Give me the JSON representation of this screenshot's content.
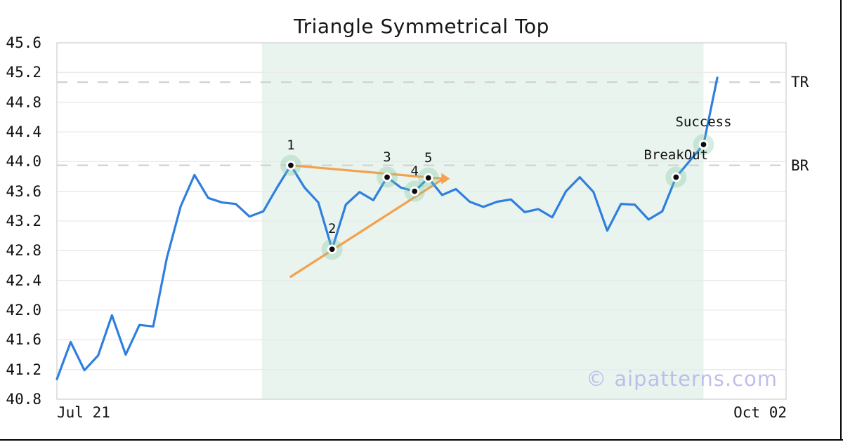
{
  "chart_data": {
    "type": "line",
    "title": "Triangle Symmetrical Top",
    "watermark": "© aipatterns.com",
    "x_tick_labels": [
      "Jul 21",
      "Oct 02"
    ],
    "ylim": [
      40.8,
      45.6
    ],
    "y_tick_step": 0.4,
    "grid": true,
    "series": [
      41.07,
      41.57,
      41.19,
      41.39,
      41.93,
      41.4,
      41.8,
      41.78,
      42.71,
      43.4,
      43.82,
      43.51,
      43.45,
      43.43,
      43.26,
      43.33,
      43.65,
      43.95,
      43.65,
      43.45,
      42.82,
      43.42,
      43.59,
      43.48,
      43.79,
      43.65,
      43.6,
      43.78,
      43.55,
      43.63,
      43.46,
      43.39,
      43.46,
      43.49,
      43.32,
      43.36,
      43.25,
      43.6,
      43.79,
      43.59,
      43.07,
      43.43,
      43.42,
      43.22,
      43.33,
      43.79,
      44.01,
      44.23,
      45.13
    ],
    "pattern_points": [
      {
        "label": "1",
        "index": 17,
        "value": 43.95,
        "kind": "number"
      },
      {
        "label": "2",
        "index": 20,
        "value": 42.82,
        "kind": "number"
      },
      {
        "label": "3",
        "index": 24,
        "value": 43.79,
        "kind": "number"
      },
      {
        "label": "4",
        "index": 26,
        "value": 43.6,
        "kind": "number"
      },
      {
        "label": "5",
        "index": 27,
        "value": 43.78,
        "kind": "number"
      },
      {
        "label": "BreakOut",
        "index": 45,
        "value": 43.79,
        "kind": "word"
      },
      {
        "label": "Success",
        "index": 47,
        "value": 44.23,
        "kind": "word"
      }
    ],
    "levels": [
      {
        "label": "TR",
        "value": 45.07
      },
      {
        "label": "BR",
        "value": 43.95
      }
    ],
    "trendlines": [
      {
        "from_index": 17.0,
        "from_value": 43.95,
        "to_index": 28.1,
        "to_value": 43.77
      },
      {
        "from_index": 17.0,
        "from_value": 42.45,
        "to_index": 28.1,
        "to_value": 43.77
      }
    ],
    "pattern_region": {
      "from_index": 14.9,
      "to_index": 47.0
    },
    "colors": {
      "line": "#2e7fdf",
      "trendline": "#f5a04c",
      "region": "#e9f4ef",
      "halo": "#7ec89f",
      "grid": "#e9e9e9",
      "border": "#d7d7d7",
      "dashed_level": "#d2d2d2",
      "marker_dot": "#0d0d0d",
      "watermark": "#b9b9ea",
      "text": "#111111"
    }
  }
}
